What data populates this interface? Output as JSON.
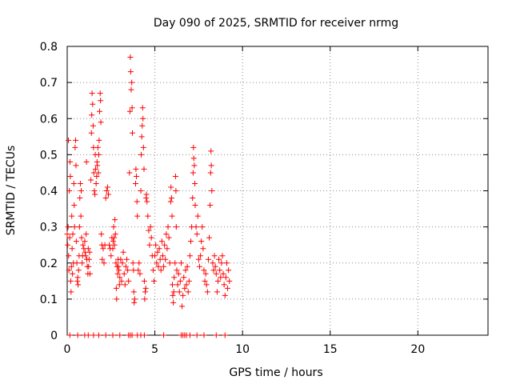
{
  "chart_data": {
    "type": "scatter",
    "title": "Day 090 of 2025, SRMTID for receiver nrmg",
    "xlabel": "GPS time / hours",
    "ylabel": "SRMTID / TECUs",
    "xlim": [
      0,
      24
    ],
    "ylim": [
      0,
      0.8
    ],
    "x_ticks": [
      "0",
      "5",
      "10",
      "15",
      "20"
    ],
    "y_ticks": [
      "0",
      "0.1",
      "0.2",
      "0.3",
      "0.4",
      "0.5",
      "0.6",
      "0.7",
      "0.8"
    ],
    "grid": true,
    "marker": "plus",
    "marker_color": "#ff0000",
    "series": [
      {
        "points": [
          [
            0.0,
            0.28
          ],
          [
            0.03,
            0.25
          ],
          [
            0.05,
            0.3
          ],
          [
            0.07,
            0.54
          ],
          [
            0.08,
            0.22
          ],
          [
            0.1,
            0.18
          ],
          [
            0.12,
            0.4
          ],
          [
            0.14,
            0.27
          ],
          [
            0.16,
            0.48
          ],
          [
            0.18,
            0.44
          ],
          [
            0.2,
            0.15
          ],
          [
            0.22,
            0.12
          ],
          [
            0.24,
            0.19
          ],
          [
            0.26,
            0.33
          ],
          [
            0.28,
            0.24
          ],
          [
            0.3,
            0.17
          ],
          [
            0.32,
            0.28
          ],
          [
            0.35,
            0.2
          ],
          [
            0.38,
            0.42
          ],
          [
            0.4,
            0.36
          ],
          [
            0.42,
            0.3
          ],
          [
            0.45,
            0.52
          ],
          [
            0.48,
            0.54
          ],
          [
            0.5,
            0.47
          ],
          [
            0.52,
            0.26
          ],
          [
            0.55,
            0.2
          ],
          [
            0.58,
            0.15
          ],
          [
            0.6,
            0.16
          ],
          [
            0.62,
            0.14
          ],
          [
            0.65,
            0.18
          ],
          [
            0.68,
            0.22
          ],
          [
            0.7,
            0.3
          ],
          [
            0.72,
            0.38
          ],
          [
            0.75,
            0.42
          ],
          [
            0.78,
            0.33
          ],
          [
            0.8,
            0.4
          ],
          [
            0.82,
            0.27
          ],
          [
            0.85,
            0.2
          ],
          [
            0.88,
            0.22
          ],
          [
            0.9,
            0.25
          ],
          [
            0.95,
            0.24
          ],
          [
            1.0,
            0.26
          ],
          [
            1.02,
            0.23
          ],
          [
            1.05,
            0.22
          ],
          [
            1.08,
            0.28
          ],
          [
            1.1,
            0.48
          ],
          [
            1.12,
            0.21
          ],
          [
            1.15,
            0.19
          ],
          [
            1.18,
            0.17
          ],
          [
            1.2,
            0.24
          ],
          [
            1.22,
            0.19
          ],
          [
            1.25,
            0.21
          ],
          [
            1.28,
            0.23
          ],
          [
            1.3,
            0.17
          ],
          [
            1.35,
            0.43
          ],
          [
            1.38,
            0.56
          ],
          [
            1.4,
            0.61
          ],
          [
            1.42,
            0.67
          ],
          [
            1.45,
            0.64
          ],
          [
            1.48,
            0.58
          ],
          [
            1.5,
            0.52
          ],
          [
            1.52,
            0.45
          ],
          [
            1.55,
            0.4
          ],
          [
            1.58,
            0.39
          ],
          [
            1.6,
            0.5
          ],
          [
            1.62,
            0.46
          ],
          [
            1.65,
            0.42
          ],
          [
            1.68,
            0.44
          ],
          [
            1.7,
            0.48
          ],
          [
            1.72,
            0.47
          ],
          [
            1.75,
            0.52
          ],
          [
            1.78,
            0.45
          ],
          [
            1.8,
            0.5
          ],
          [
            1.82,
            0.54
          ],
          [
            1.85,
            0.62
          ],
          [
            1.88,
            0.67
          ],
          [
            1.9,
            0.65
          ],
          [
            1.92,
            0.59
          ],
          [
            1.95,
            0.28
          ],
          [
            1.98,
            0.25
          ],
          [
            2.0,
            0.21
          ],
          [
            2.05,
            0.24
          ],
          [
            2.1,
            0.2
          ],
          [
            2.15,
            0.25
          ],
          [
            2.2,
            0.38
          ],
          [
            2.25,
            0.4
          ],
          [
            2.3,
            0.41
          ],
          [
            2.35,
            0.39
          ],
          [
            2.4,
            0.25
          ],
          [
            2.45,
            0.24
          ],
          [
            2.5,
            0.22
          ],
          [
            2.55,
            0.27
          ],
          [
            2.6,
            0.24
          ],
          [
            2.62,
            0.26
          ],
          [
            2.65,
            0.3
          ],
          [
            2.68,
            0.27
          ],
          [
            2.7,
            0.25
          ],
          [
            2.72,
            0.32
          ],
          [
            2.75,
            0.28
          ],
          [
            2.78,
            0.2
          ],
          [
            2.8,
            0.13
          ],
          [
            2.82,
            0.1
          ],
          [
            2.85,
            0.19
          ],
          [
            2.88,
            0.17
          ],
          [
            2.9,
            0.21
          ],
          [
            2.92,
            0.19
          ],
          [
            2.95,
            0.18
          ],
          [
            2.98,
            0.14
          ],
          [
            3.0,
            0.16
          ],
          [
            3.05,
            0.21
          ],
          [
            3.1,
            0.15
          ],
          [
            3.15,
            0.2
          ],
          [
            3.2,
            0.23
          ],
          [
            3.25,
            0.17
          ],
          [
            3.3,
            0.14
          ],
          [
            3.35,
            0.19
          ],
          [
            3.4,
            0.21
          ],
          [
            3.45,
            0.18
          ],
          [
            3.5,
            0.15
          ],
          [
            3.55,
            0.45
          ],
          [
            3.58,
            0.62
          ],
          [
            3.6,
            0.77
          ],
          [
            3.62,
            0.73
          ],
          [
            3.65,
            0.68
          ],
          [
            3.68,
            0.7
          ],
          [
            3.7,
            0.63
          ],
          [
            3.72,
            0.56
          ],
          [
            3.75,
            0.2
          ],
          [
            3.78,
            0.18
          ],
          [
            3.8,
            0.12
          ],
          [
            3.82,
            0.09
          ],
          [
            3.85,
            0.1
          ],
          [
            3.9,
            0.42
          ],
          [
            3.92,
            0.46
          ],
          [
            3.95,
            0.44
          ],
          [
            3.98,
            0.37
          ],
          [
            4.0,
            0.33
          ],
          [
            4.05,
            0.18
          ],
          [
            4.1,
            0.2
          ],
          [
            4.15,
            0.17
          ],
          [
            4.2,
            0.4
          ],
          [
            4.22,
            0.5
          ],
          [
            4.25,
            0.55
          ],
          [
            4.28,
            0.58
          ],
          [
            4.3,
            0.63
          ],
          [
            4.32,
            0.6
          ],
          [
            4.35,
            0.52
          ],
          [
            4.38,
            0.46
          ],
          [
            4.4,
            0.15
          ],
          [
            4.42,
            0.1
          ],
          [
            4.45,
            0.12
          ],
          [
            4.48,
            0.13
          ],
          [
            4.5,
            0.38
          ],
          [
            4.52,
            0.39
          ],
          [
            4.55,
            0.37
          ],
          [
            4.6,
            0.33
          ],
          [
            4.65,
            0.29
          ],
          [
            4.7,
            0.25
          ],
          [
            4.75,
            0.3
          ],
          [
            4.8,
            0.27
          ],
          [
            4.85,
            0.22
          ],
          [
            4.9,
            0.18
          ],
          [
            4.95,
            0.15
          ],
          [
            5.0,
            0.22
          ],
          [
            5.05,
            0.25
          ],
          [
            5.1,
            0.2
          ],
          [
            5.15,
            0.23
          ],
          [
            5.2,
            0.19
          ],
          [
            5.25,
            0.24
          ],
          [
            5.3,
            0.21
          ],
          [
            5.35,
            0.18
          ],
          [
            5.4,
            0.26
          ],
          [
            5.45,
            0.22
          ],
          [
            5.5,
            0.19
          ],
          [
            5.55,
            0.25
          ],
          [
            5.6,
            0.21
          ],
          [
            5.65,
            0.28
          ],
          [
            5.7,
            0.24
          ],
          [
            5.75,
            0.3
          ],
          [
            5.8,
            0.27
          ],
          [
            5.85,
            0.2
          ],
          [
            5.9,
            0.37
          ],
          [
            5.92,
            0.41
          ],
          [
            5.95,
            0.38
          ],
          [
            5.98,
            0.33
          ],
          [
            6.0,
            0.14
          ],
          [
            6.02,
            0.11
          ],
          [
            6.05,
            0.09
          ],
          [
            6.08,
            0.12
          ],
          [
            6.1,
            0.16
          ],
          [
            6.15,
            0.2
          ],
          [
            6.18,
            0.44
          ],
          [
            6.2,
            0.4
          ],
          [
            6.22,
            0.3
          ],
          [
            6.25,
            0.18
          ],
          [
            6.3,
            0.14
          ],
          [
            6.35,
            0.17
          ],
          [
            6.4,
            0.12
          ],
          [
            6.45,
            0.15
          ],
          [
            6.5,
            0.2
          ],
          [
            6.55,
            0.08
          ],
          [
            6.6,
            0.11
          ],
          [
            6.65,
            0.16
          ],
          [
            6.7,
            0.13
          ],
          [
            6.75,
            0.18
          ],
          [
            6.8,
            0.14
          ],
          [
            6.85,
            0.19
          ],
          [
            6.9,
            0.12
          ],
          [
            6.95,
            0.15
          ],
          [
            7.0,
            0.22
          ],
          [
            7.05,
            0.26
          ],
          [
            7.1,
            0.3
          ],
          [
            7.15,
            0.38
          ],
          [
            7.18,
            0.45
          ],
          [
            7.2,
            0.52
          ],
          [
            7.22,
            0.49
          ],
          [
            7.25,
            0.47
          ],
          [
            7.28,
            0.42
          ],
          [
            7.3,
            0.36
          ],
          [
            7.35,
            0.3
          ],
          [
            7.4,
            0.28
          ],
          [
            7.45,
            0.33
          ],
          [
            7.5,
            0.21
          ],
          [
            7.55,
            0.19
          ],
          [
            7.6,
            0.22
          ],
          [
            7.65,
            0.26
          ],
          [
            7.7,
            0.3
          ],
          [
            7.75,
            0.24
          ],
          [
            7.8,
            0.18
          ],
          [
            7.85,
            0.15
          ],
          [
            7.9,
            0.17
          ],
          [
            7.95,
            0.14
          ],
          [
            8.0,
            0.12
          ],
          [
            8.05,
            0.21
          ],
          [
            8.1,
            0.27
          ],
          [
            8.15,
            0.36
          ],
          [
            8.18,
            0.45
          ],
          [
            8.2,
            0.51
          ],
          [
            8.22,
            0.47
          ],
          [
            8.25,
            0.4
          ],
          [
            8.3,
            0.2
          ],
          [
            8.35,
            0.18
          ],
          [
            8.4,
            0.22
          ],
          [
            8.45,
            0.19
          ],
          [
            8.5,
            0.17
          ],
          [
            8.55,
            0.12
          ],
          [
            8.6,
            0.15
          ],
          [
            8.65,
            0.21
          ],
          [
            8.7,
            0.18
          ],
          [
            8.75,
            0.16
          ],
          [
            8.8,
            0.2
          ],
          [
            8.85,
            0.22
          ],
          [
            8.9,
            0.17
          ],
          [
            8.95,
            0.14
          ],
          [
            9.0,
            0.11
          ],
          [
            9.05,
            0.16
          ],
          [
            9.1,
            0.2
          ],
          [
            9.15,
            0.13
          ],
          [
            9.2,
            0.18
          ],
          [
            9.25,
            0.15
          ],
          [
            0.15,
            0.0
          ],
          [
            0.6,
            0.0
          ],
          [
            1.0,
            0.0
          ],
          [
            1.2,
            0.0
          ],
          [
            1.5,
            0.0
          ],
          [
            1.8,
            0.0
          ],
          [
            2.2,
            0.0
          ],
          [
            2.6,
            0.0
          ],
          [
            3.0,
            0.0
          ],
          [
            3.5,
            0.0
          ],
          [
            3.6,
            0.0
          ],
          [
            3.7,
            0.0
          ],
          [
            4.0,
            0.0
          ],
          [
            4.2,
            0.0
          ],
          [
            4.4,
            0.0
          ],
          [
            5.5,
            0.0
          ],
          [
            6.5,
            0.0
          ],
          [
            6.6,
            0.0
          ],
          [
            6.7,
            0.0
          ],
          [
            6.8,
            0.0
          ],
          [
            7.0,
            0.0
          ],
          [
            7.4,
            0.0
          ],
          [
            7.8,
            0.0
          ],
          [
            8.5,
            0.0
          ],
          [
            9.0,
            0.0
          ]
        ]
      }
    ]
  }
}
